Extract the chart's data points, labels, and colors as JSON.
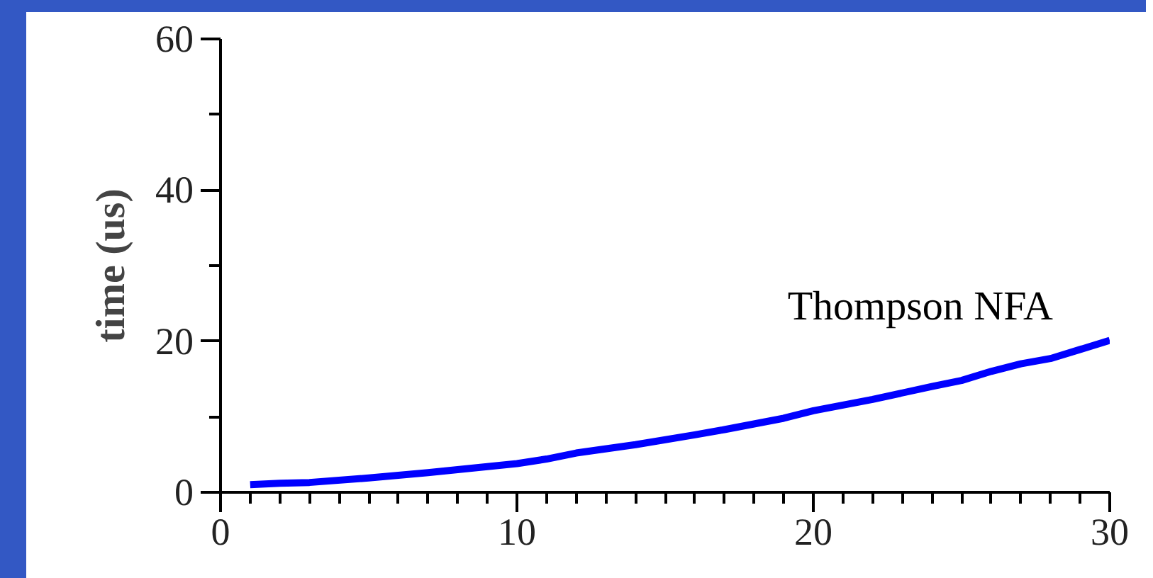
{
  "chart_data": {
    "type": "line",
    "ylabel": "time (us)",
    "x": [
      1,
      2,
      3,
      5,
      7,
      9,
      10,
      11,
      12,
      14,
      16,
      17,
      19,
      20,
      22,
      24,
      25,
      26,
      27,
      28,
      29,
      30
    ],
    "series": [
      {
        "name": "Thompson NFA",
        "color": "#0000ff",
        "values": [
          1.0,
          1.2,
          1.3,
          1.9,
          2.6,
          3.4,
          3.8,
          4.4,
          5.2,
          6.3,
          7.6,
          8.3,
          9.8,
          10.8,
          12.3,
          14.0,
          14.8,
          16.0,
          17.0,
          17.7,
          18.9,
          20.1
        ]
      }
    ],
    "xlim": [
      0,
      30
    ],
    "ylim": [
      0,
      60
    ],
    "xticks": [
      0,
      {
        "value": 1,
        "label": null
      },
      {
        "value": 2,
        "label": null
      },
      {
        "value": 3,
        "label": null
      },
      {
        "value": 4,
        "label": null
      },
      {
        "value": 5,
        "label": null
      },
      {
        "value": 6,
        "label": null
      },
      {
        "value": 7,
        "label": null
      },
      {
        "value": 8,
        "label": null
      },
      {
        "value": 9,
        "label": null
      },
      10,
      {
        "value": 11,
        "label": null
      },
      {
        "value": 12,
        "label": null
      },
      {
        "value": 13,
        "label": null
      },
      {
        "value": 14,
        "label": null
      },
      {
        "value": 15,
        "label": null
      },
      {
        "value": 16,
        "label": null
      },
      {
        "value": 17,
        "label": null
      },
      {
        "value": 18,
        "label": null
      },
      {
        "value": 19,
        "label": null
      },
      20,
      {
        "value": 21,
        "label": null
      },
      {
        "value": 22,
        "label": null
      },
      {
        "value": 23,
        "label": null
      },
      {
        "value": 24,
        "label": null
      },
      {
        "value": 25,
        "label": null
      },
      {
        "value": 26,
        "label": null
      },
      {
        "value": 27,
        "label": null
      },
      {
        "value": 28,
        "label": null
      },
      {
        "value": 29,
        "label": null
      },
      30
    ],
    "yticks": [
      0,
      {
        "value": 10,
        "label": null
      },
      20,
      {
        "value": 30,
        "label": null
      },
      40,
      {
        "value": 50,
        "label": null
      },
      60
    ],
    "grid": false,
    "legend": false,
    "marker": "none",
    "line_style": "solid"
  }
}
